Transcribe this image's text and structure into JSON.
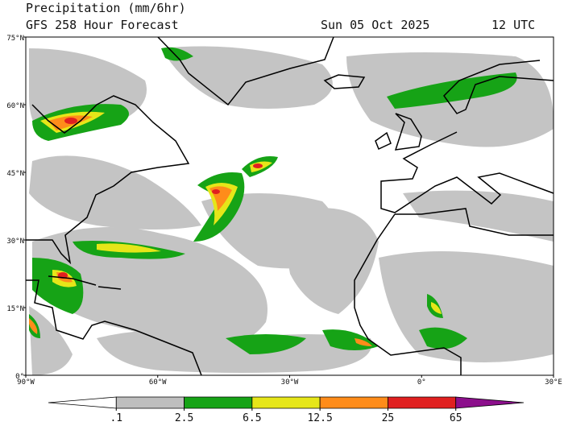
{
  "header": {
    "title": "Precipitation (mm/6hr)",
    "subtitle": "GFS 258 Hour Forecast",
    "date": "Sun 05 Oct 2025",
    "time": "12 UTC"
  },
  "map": {
    "lat_labels": [
      {
        "value": 75,
        "label": "75°N"
      },
      {
        "value": 60,
        "label": "60°N"
      },
      {
        "value": 45,
        "label": "45°N"
      },
      {
        "value": 30,
        "label": "30°N"
      },
      {
        "value": 15,
        "label": "15°N"
      },
      {
        "value": 0,
        "label": "0°"
      }
    ],
    "lon_labels": [
      {
        "value": -90,
        "label": "90°W"
      },
      {
        "value": -60,
        "label": "60°W"
      },
      {
        "value": -30,
        "label": "30°W"
      },
      {
        "value": 0,
        "label": "0°"
      },
      {
        "value": 30,
        "label": "30°E"
      }
    ],
    "lonlim": [
      -90,
      30
    ],
    "latlim": [
      0,
      75
    ]
  },
  "colorbar": {
    "levels": [
      {
        "value": 0.1,
        "label": ".1"
      },
      2.5,
      6.5,
      12.5,
      25,
      65
    ],
    "colors": [
      "#ffffff",
      "#bebebe",
      "#16a316",
      "#e6e619",
      "#ff8c1a",
      "#e02020",
      "#8c0f8c"
    ]
  }
}
